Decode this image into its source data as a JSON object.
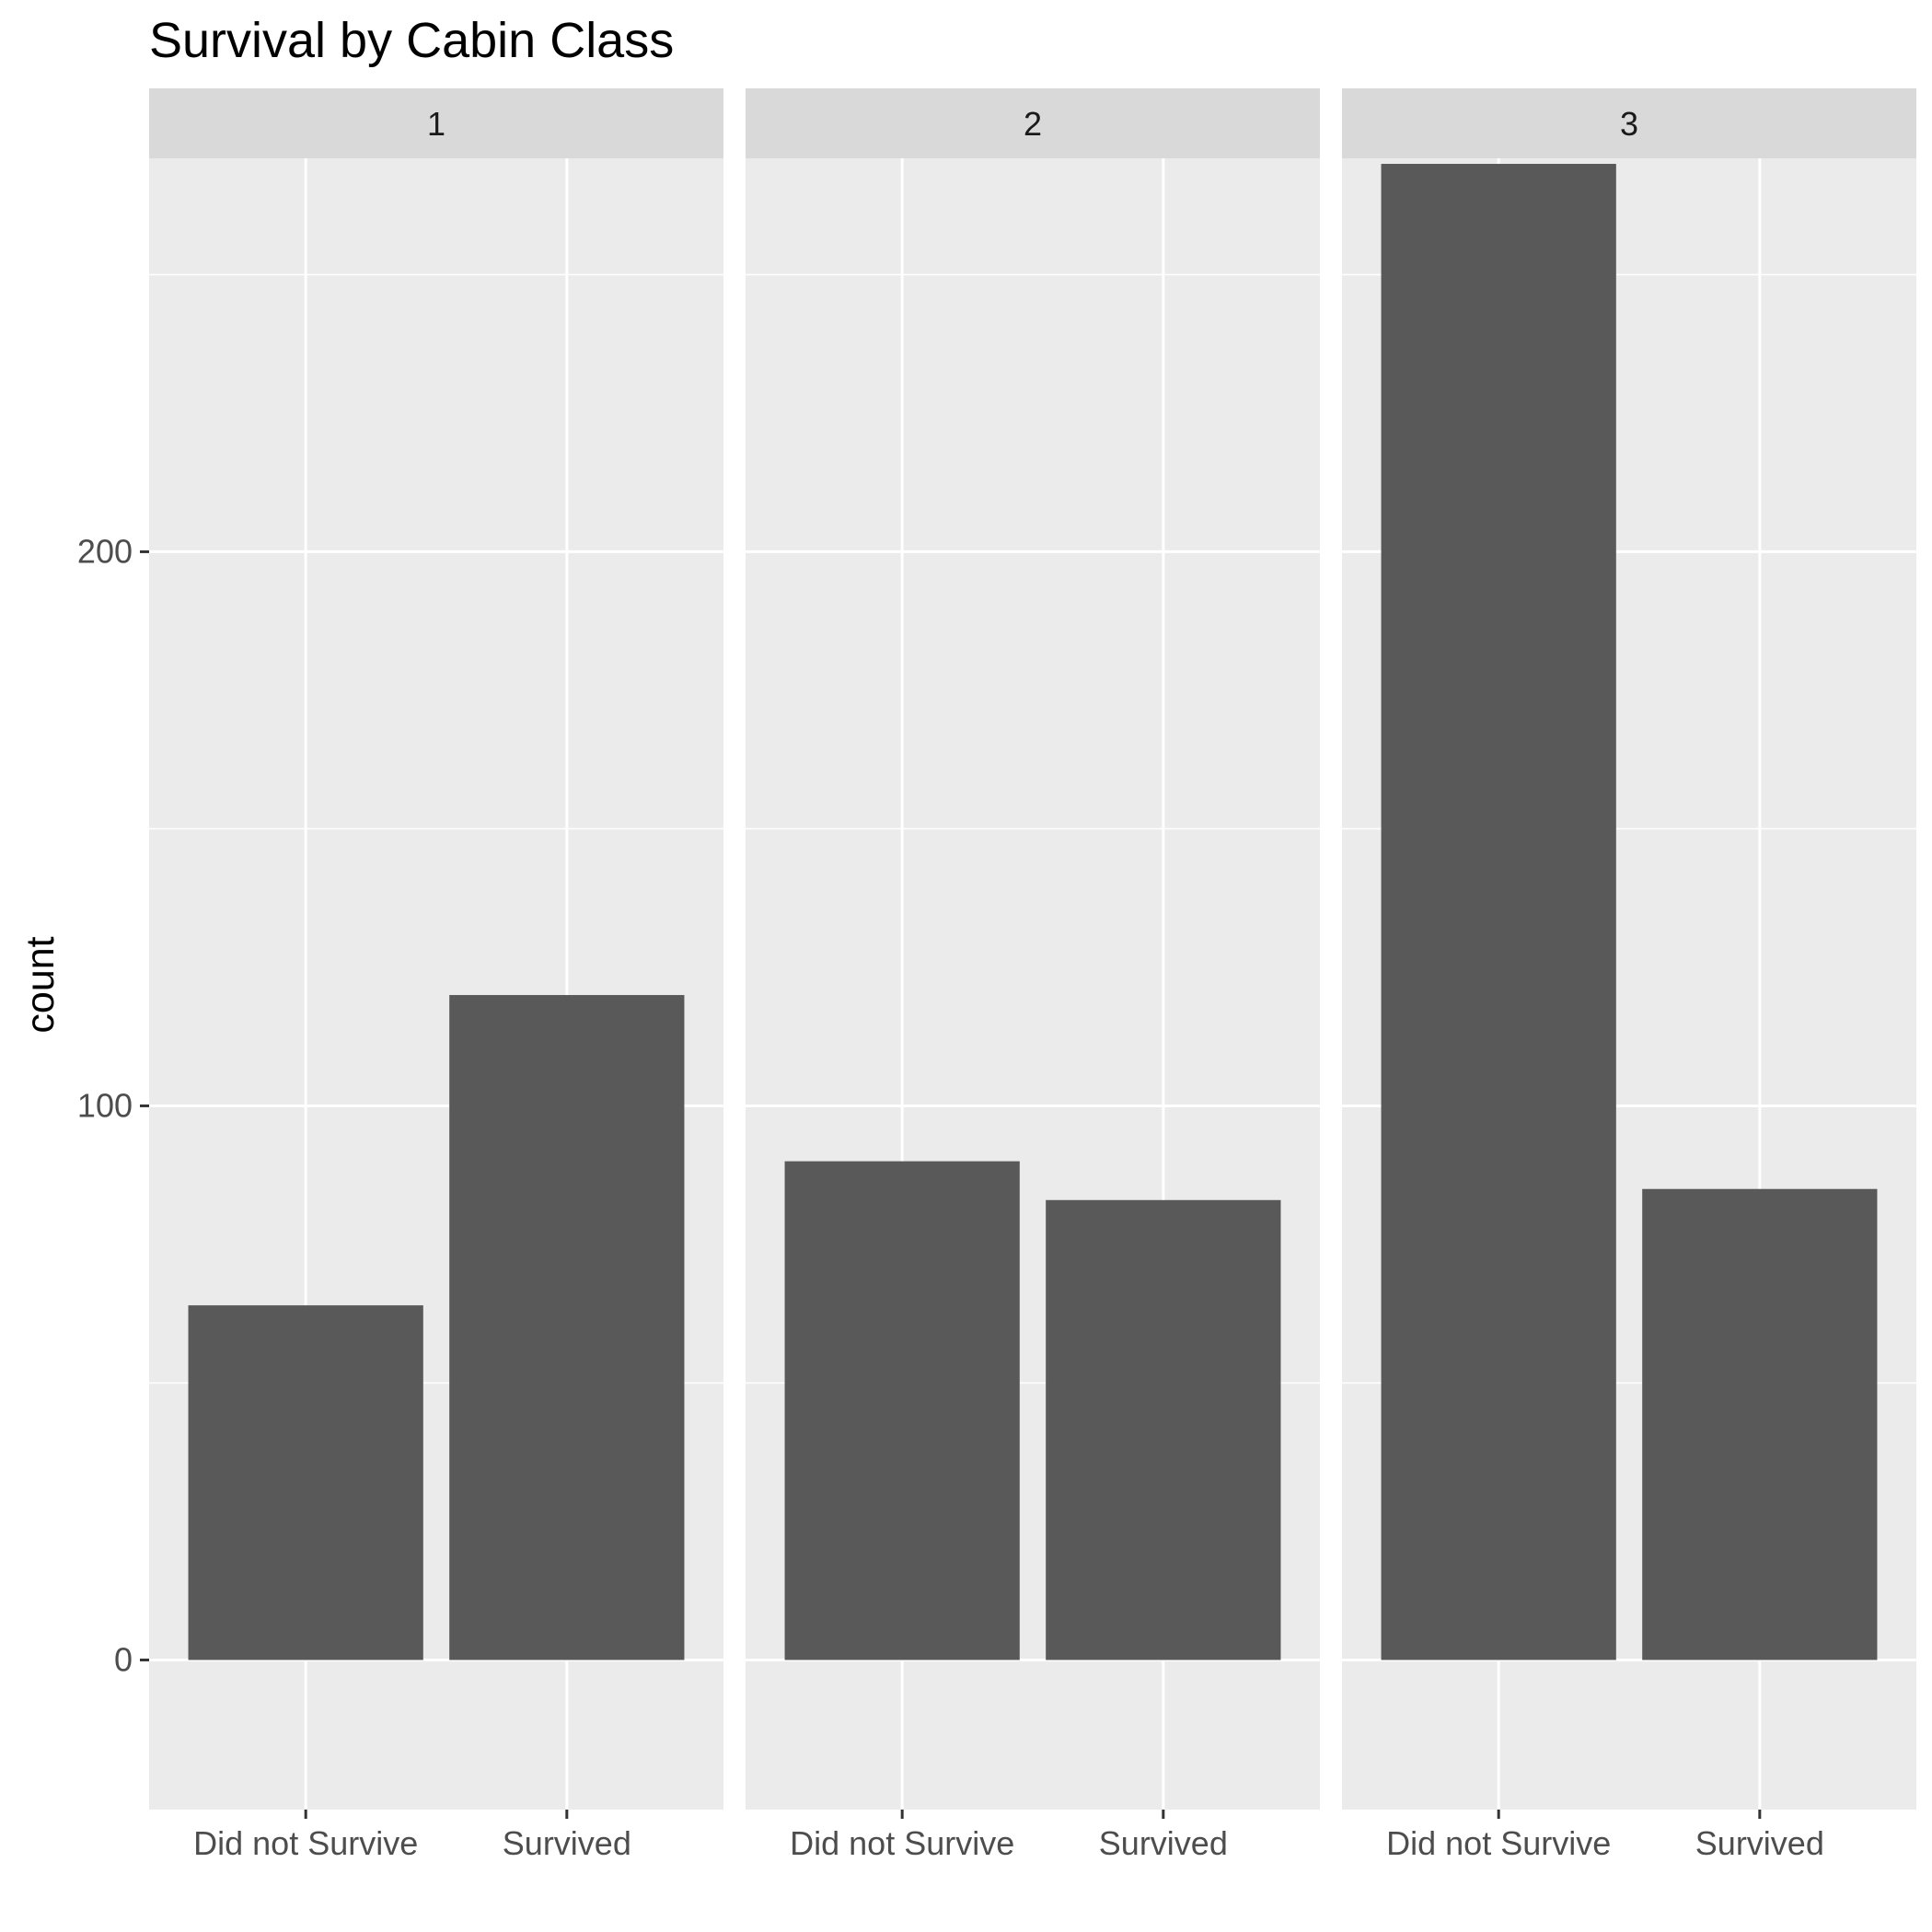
{
  "chart_data": {
    "type": "bar",
    "title": "Survival by Cabin Class",
    "xlabel": "",
    "ylabel": "count",
    "ylim": [
      -27,
      271
    ],
    "yticks": [
      0,
      100,
      200
    ],
    "ytick_labels": [
      "0",
      "100",
      "200"
    ],
    "grid": true,
    "categories": [
      "Did not Survive",
      "Survived"
    ],
    "facets": [
      {
        "label": "1",
        "values": [
          64,
          120
        ]
      },
      {
        "label": "2",
        "values": [
          90,
          83
        ]
      },
      {
        "label": "3",
        "values": [
          270,
          85
        ]
      }
    ],
    "colors": {
      "bar": "#595959",
      "panel": "#ebebeb",
      "strip": "#d9d9d9",
      "grid": "#ffffff"
    }
  }
}
